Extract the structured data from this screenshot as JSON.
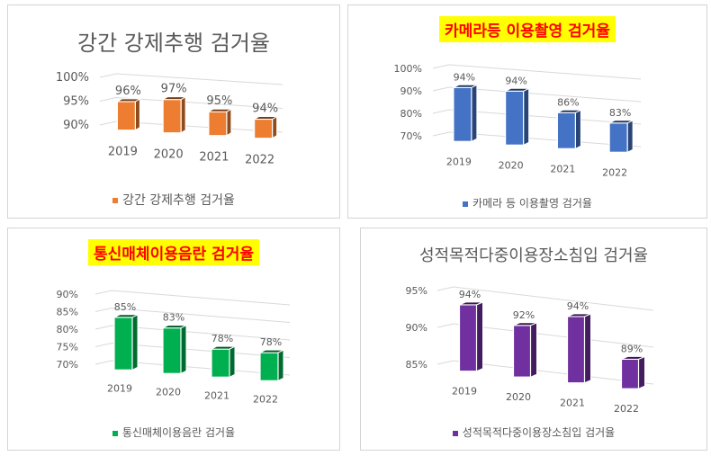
{
  "chart_data": [
    {
      "type": "bar",
      "title": "강간 강제추행 검거율",
      "categories": [
        "2019",
        "2020",
        "2021",
        "2022"
      ],
      "series": [
        {
          "name": "강간 강제추행 검거율",
          "values": [
            96,
            97,
            95,
            94
          ]
        }
      ],
      "data_labels": [
        "96%",
        "97%",
        "95%",
        "94%"
      ],
      "ylim": [
        90,
        100
      ],
      "yticks": [
        "90%",
        "95%",
        "100%"
      ],
      "ytick_values": [
        90,
        95,
        100
      ],
      "color": "#ed7d31",
      "title_highlight": false,
      "legend": "bottom",
      "grid": true,
      "style": "3d-column"
    },
    {
      "type": "bar",
      "title": "카메라등 이용촬영 검거율",
      "categories": [
        "2019",
        "2020",
        "2021",
        "2022"
      ],
      "series": [
        {
          "name": "카메라 등 이용촬영 검거율",
          "values": [
            94,
            94,
            86,
            83
          ]
        }
      ],
      "data_labels": [
        "94%",
        "94%",
        "86%",
        "83%"
      ],
      "ylim": [
        70,
        100
      ],
      "yticks": [
        "70%",
        "80%",
        "90%",
        "100%"
      ],
      "ytick_values": [
        70,
        80,
        90,
        100
      ],
      "color": "#4472c4",
      "title_highlight": true,
      "title_highlight_color": "#ffff00",
      "title_text_color": "#ff0000",
      "legend": "bottom",
      "grid": true,
      "style": "3d-column"
    },
    {
      "type": "bar",
      "title": "통신매체이용음란 검거율",
      "categories": [
        "2019",
        "2020",
        "2021",
        "2022"
      ],
      "series": [
        {
          "name": "통신매체이용음란 검거율",
          "values": [
            85,
            83,
            78,
            78
          ]
        }
      ],
      "data_labels": [
        "85%",
        "83%",
        "78%",
        "78%"
      ],
      "ylim": [
        70,
        90
      ],
      "yticks": [
        "70%",
        "75%",
        "80%",
        "85%",
        "90%"
      ],
      "ytick_values": [
        70,
        75,
        80,
        85,
        90
      ],
      "color": "#00b050",
      "title_highlight": true,
      "title_highlight_color": "#ffff00",
      "title_text_color": "#ff0000",
      "legend": "bottom",
      "grid": true,
      "style": "3d-column"
    },
    {
      "type": "bar",
      "title": "성적목적다중이용장소침입 검거율",
      "categories": [
        "2019",
        "2020",
        "2021",
        "2022"
      ],
      "series": [
        {
          "name": "성적목적다중이용장소침입 검거율",
          "values": [
            94,
            92,
            94,
            89
          ]
        }
      ],
      "data_labels": [
        "94%",
        "92%",
        "94%",
        "89%"
      ],
      "ylim": [
        85,
        95
      ],
      "yticks": [
        "85%",
        "90%",
        "95%"
      ],
      "ytick_values": [
        85,
        90,
        95
      ],
      "color": "#7030a0",
      "title_highlight": false,
      "legend": "bottom",
      "grid": true,
      "style": "3d-column"
    }
  ]
}
